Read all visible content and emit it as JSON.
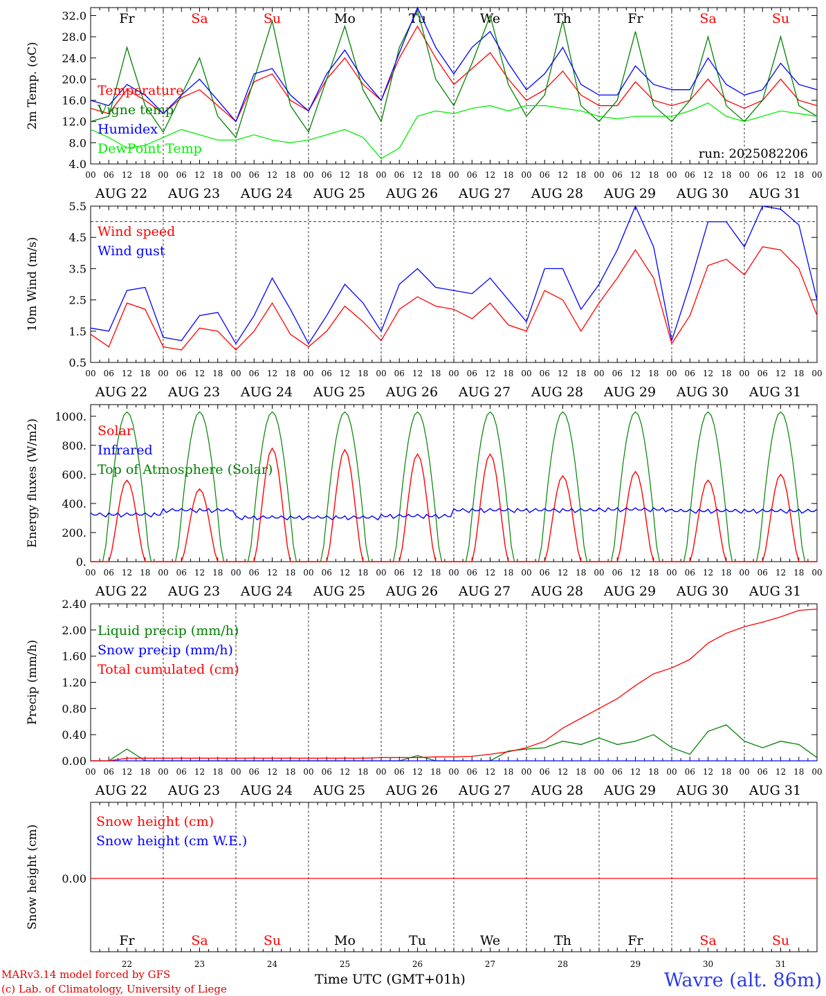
{
  "colors": {
    "temperature": "#ff0000",
    "vigne": "#008000",
    "humidex": "#0000ff",
    "dewpoint": "#00ee00",
    "weekday": "#000000",
    "weekend": "#ff0000",
    "grid": "#000000"
  },
  "day_names": [
    {
      "label": "Fr",
      "weekend": false
    },
    {
      "label": "Sa",
      "weekend": true
    },
    {
      "label": "Su",
      "weekend": true
    },
    {
      "label": "Mo",
      "weekend": false
    },
    {
      "label": "Tu",
      "weekend": false
    },
    {
      "label": "We",
      "weekend": false
    },
    {
      "label": "Th",
      "weekend": false
    },
    {
      "label": "Fr",
      "weekend": false
    },
    {
      "label": "Sa",
      "weekend": true
    },
    {
      "label": "Su",
      "weekend": true
    }
  ],
  "date_labels": [
    "AUG 22",
    "AUG 23",
    "AUG 24",
    "AUG 25",
    "AUG 26",
    "AUG 27",
    "AUG 28",
    "AUG 29",
    "AUG 30",
    "AUG 31"
  ],
  "hour_ticks": [
    "00",
    "06",
    "12",
    "18"
  ],
  "hour_end": "00",
  "day_numbers": [
    "22",
    "23",
    "24",
    "25",
    "26",
    "27",
    "28",
    "29",
    "30",
    "31"
  ],
  "chart_data": [
    {
      "type": "line",
      "ylabel": "2m Temp. (oC)",
      "ylim": [
        4,
        33.5
      ],
      "yticks": [
        "4.0",
        "8.0",
        "12.0",
        "16.0",
        "20.0",
        "24.0",
        "28.0",
        "32.0"
      ],
      "ytick_values": [
        4,
        8,
        12,
        16,
        20,
        24,
        28,
        32
      ],
      "annotation": "run: 2025082206",
      "x_hours": [
        0,
        6,
        12,
        18,
        24,
        30,
        36,
        42,
        48,
        54,
        60,
        66,
        72,
        78,
        84,
        90,
        96,
        102,
        108,
        114,
        120,
        126,
        132,
        138,
        144,
        150,
        156,
        162,
        168,
        174,
        180,
        186,
        192,
        198,
        204,
        210,
        216,
        222,
        228,
        234,
        240
      ],
      "series": [
        {
          "name": "Temperature",
          "color": "#ff0000",
          "values": [
            14.5,
            13.5,
            18,
            16,
            13.5,
            16.5,
            18,
            15,
            12,
            19.5,
            21,
            16,
            14,
            20,
            24,
            19,
            16,
            24,
            30,
            24,
            19,
            22,
            25,
            20,
            16,
            18,
            21.5,
            17,
            15,
            15,
            19.5,
            16,
            15,
            16,
            20,
            16,
            14.5,
            16,
            20,
            16,
            15
          ]
        },
        {
          "name": "Vigne temp",
          "color": "#008000",
          "values": [
            12,
            13,
            26,
            15,
            10,
            17,
            24,
            13,
            9,
            20,
            31,
            15,
            10,
            20,
            30,
            18,
            12,
            26,
            33,
            20,
            15,
            23,
            32,
            19,
            13,
            17,
            31,
            15,
            12,
            16,
            29,
            15,
            12,
            16,
            28,
            15,
            12,
            16,
            28,
            15,
            13
          ]
        },
        {
          "name": "Humidex",
          "color": "#0000ff",
          "values": [
            16,
            15,
            19,
            17,
            13.5,
            17,
            20,
            16,
            12,
            21,
            22,
            17,
            14,
            21,
            25.5,
            20,
            16,
            25,
            33.5,
            26,
            21,
            26,
            29,
            23,
            18,
            21,
            26,
            19,
            17,
            17,
            22.5,
            19,
            18,
            18,
            24,
            19,
            17,
            18,
            23,
            19,
            18
          ]
        },
        {
          "name": "DewPoint Temp",
          "color": "#00ee00",
          "values": [
            10.5,
            9,
            7,
            7.5,
            9,
            10.5,
            9.5,
            8.5,
            8.5,
            9.5,
            8.5,
            8,
            8.5,
            9.5,
            10.5,
            9,
            5,
            7,
            13,
            14,
            13.5,
            14.5,
            15,
            14,
            15,
            15,
            14.5,
            14,
            13,
            12.5,
            13,
            13,
            13,
            14,
            15.5,
            13,
            12,
            13,
            14,
            13.5,
            13
          ]
        }
      ]
    },
    {
      "type": "line",
      "ylabel": "10m Wind (m/s)",
      "ylim": [
        0.5,
        5.5
      ],
      "yticks": [
        "0.5",
        "1.5",
        "2.5",
        "3.5",
        "4.5",
        "5.5"
      ],
      "ytick_values": [
        0.5,
        1.5,
        2.5,
        3.5,
        4.5,
        5.5
      ],
      "reference_line": 5.0,
      "x_hours": [
        0,
        6,
        12,
        18,
        24,
        30,
        36,
        42,
        48,
        54,
        60,
        66,
        72,
        78,
        84,
        90,
        96,
        102,
        108,
        114,
        120,
        126,
        132,
        138,
        144,
        150,
        156,
        162,
        168,
        174,
        180,
        186,
        192,
        198,
        204,
        210,
        216,
        222,
        228,
        234,
        240
      ],
      "series": [
        {
          "name": "Wind speed",
          "color": "#ff0000",
          "values": [
            1.4,
            1.0,
            2.4,
            2.2,
            1.0,
            0.9,
            1.6,
            1.5,
            0.9,
            1.5,
            2.4,
            1.4,
            1.0,
            1.5,
            2.3,
            1.8,
            1.2,
            2.2,
            2.6,
            2.3,
            2.2,
            1.9,
            2.4,
            1.7,
            1.5,
            2.8,
            2.5,
            1.5,
            2.4,
            3.2,
            4.1,
            3.2,
            1.1,
            2.0,
            3.6,
            3.8,
            3.3,
            4.2,
            4.1,
            3.5,
            2.0
          ]
        },
        {
          "name": "Wind gust",
          "color": "#0000ff",
          "values": [
            1.6,
            1.5,
            2.8,
            2.9,
            1.3,
            1.2,
            2.0,
            2.1,
            1.1,
            2.0,
            3.2,
            2.2,
            1.1,
            2.0,
            3.0,
            2.4,
            1.5,
            3.0,
            3.5,
            2.9,
            2.8,
            2.7,
            3.2,
            2.5,
            1.8,
            3.5,
            3.5,
            2.2,
            3.0,
            4.1,
            5.5,
            4.2,
            1.2,
            3.0,
            5.0,
            5.0,
            4.2,
            5.5,
            5.4,
            4.9,
            2.5
          ]
        }
      ]
    },
    {
      "type": "line",
      "ylabel": "Energy fluxes (W/m2)",
      "ylim": [
        0,
        1080
      ],
      "yticks": [
        "0.",
        "200.",
        "400.",
        "600.",
        "800.",
        "1000."
      ],
      "ytick_values": [
        0,
        200,
        400,
        600,
        800,
        1000
      ],
      "solar_peaks": [
        560,
        500,
        780,
        770,
        740,
        740,
        590,
        620,
        560,
        600
      ],
      "toa_peak": 1030,
      "infrared_by_day": [
        320,
        350,
        300,
        300,
        310,
        350,
        350,
        355,
        345,
        345
      ],
      "series": [
        {
          "name": "Solar",
          "color": "#ff0000"
        },
        {
          "name": "Infrared",
          "color": "#0000ff"
        },
        {
          "name": "Top of Atmosphere (Solar)",
          "color": "#008000"
        }
      ]
    },
    {
      "type": "line",
      "ylabel": "Precip (mm/h)",
      "ylim": [
        0,
        2.4
      ],
      "yticks": [
        "0.00",
        "0.40",
        "0.80",
        "1.20",
        "1.60",
        "2.00",
        "2.40"
      ],
      "ytick_values": [
        0,
        0.4,
        0.8,
        1.2,
        1.6,
        2.0,
        2.4
      ],
      "x_hours": [
        0,
        6,
        12,
        18,
        24,
        30,
        36,
        42,
        48,
        54,
        60,
        66,
        72,
        78,
        84,
        90,
        96,
        102,
        108,
        114,
        120,
        126,
        132,
        138,
        144,
        150,
        156,
        162,
        168,
        174,
        180,
        186,
        192,
        198,
        204,
        210,
        216,
        222,
        228,
        234,
        240
      ],
      "series": [
        {
          "name": "Liquid precip (mm/h)",
          "color": "#008000",
          "values": [
            0,
            0,
            0.18,
            0,
            0,
            0,
            0,
            0,
            0,
            0,
            0,
            0,
            0,
            0,
            0,
            0,
            0,
            0,
            0.08,
            0,
            0,
            0,
            0,
            0.15,
            0.18,
            0.2,
            0.3,
            0.25,
            0.35,
            0.25,
            0.3,
            0.4,
            0.2,
            0.1,
            0.45,
            0.55,
            0.3,
            0.2,
            0.3,
            0.25,
            0.05
          ]
        },
        {
          "name": "Snow precip (mm/h)",
          "color": "#0000ff",
          "values": [
            0,
            0,
            0,
            0,
            0,
            0,
            0,
            0,
            0,
            0,
            0,
            0,
            0,
            0,
            0,
            0,
            0,
            0,
            0,
            0,
            0,
            0,
            0,
            0,
            0,
            0,
            0,
            0,
            0,
            0,
            0,
            0,
            0,
            0,
            0,
            0,
            0,
            0,
            0,
            0,
            0
          ]
        },
        {
          "name": "Total cumulated (cm)",
          "color": "#ff0000",
          "values": [
            0,
            0,
            0.04,
            0.04,
            0.04,
            0.04,
            0.04,
            0.04,
            0.04,
            0.04,
            0.04,
            0.04,
            0.04,
            0.04,
            0.04,
            0.04,
            0.05,
            0.05,
            0.05,
            0.06,
            0.06,
            0.07,
            0.1,
            0.14,
            0.2,
            0.3,
            0.5,
            0.65,
            0.8,
            0.95,
            1.15,
            1.33,
            1.42,
            1.55,
            1.8,
            1.95,
            2.05,
            2.12,
            2.2,
            2.3,
            2.32
          ]
        }
      ]
    },
    {
      "type": "line",
      "ylabel": "Snow height (cm)",
      "yticks": [
        "0.00"
      ],
      "ytick_values": [
        0
      ],
      "series": [
        {
          "name": "Snow height (cm)",
          "color": "#ff0000"
        },
        {
          "name": "Snow height (cm W.E.)",
          "color": "#0000ff"
        }
      ]
    }
  ],
  "footer": {
    "model": "MARv3.14 model forced by GFS",
    "lab": "(c) Lab. of Climatology, University of Liege",
    "axis_label": "Time UTC (GMT+01h)",
    "station": "Wavre (alt. 86m)"
  }
}
